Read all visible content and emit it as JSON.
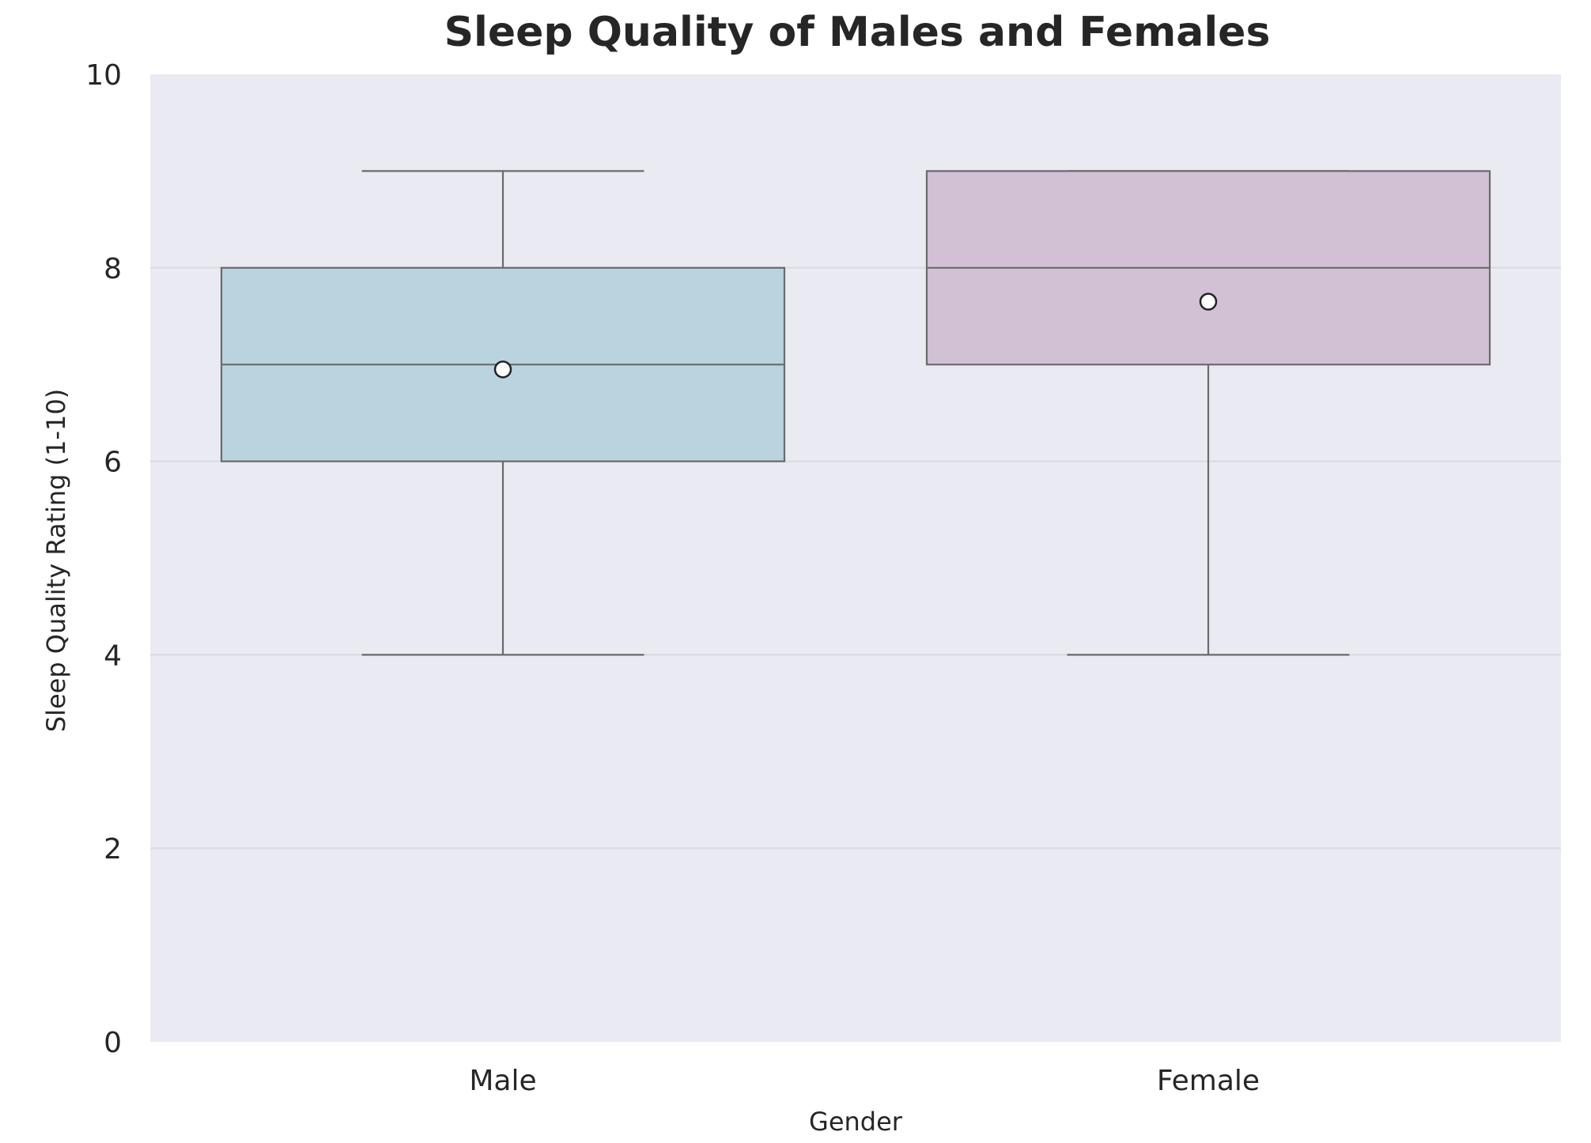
{
  "chart_data": {
    "type": "box",
    "title": "Sleep Quality of Males and Females",
    "xlabel": "Gender",
    "ylabel": "Sleep Quality Rating (1-10)",
    "ylim": [
      0,
      10
    ],
    "yticks": [
      0,
      2,
      4,
      6,
      8,
      10
    ],
    "grid": true,
    "categories": [
      "Male",
      "Female"
    ],
    "boxes": [
      {
        "category": "Male",
        "whisker_low": 4,
        "q1": 6,
        "median": 7,
        "q3": 8,
        "whisker_high": 9,
        "mean": 6.95,
        "color": "#b9d3df"
      },
      {
        "category": "Female",
        "whisker_low": 4,
        "q1": 7,
        "median": 8,
        "q3": 9,
        "whisker_high": 9,
        "mean": 7.65,
        "color": "#d2c1d4"
      }
    ]
  },
  "colors": {
    "plot_background": "#eaeaf2",
    "gridline": "#dcdce4",
    "box_edge": "#6b6b6b",
    "mean_fill": "#ffffff",
    "mean_edge": "#222222"
  }
}
